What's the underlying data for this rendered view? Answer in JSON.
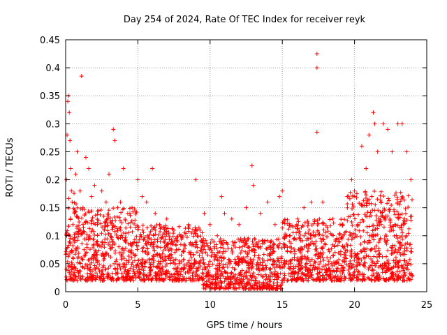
{
  "chart_data": {
    "type": "scatter",
    "title": "Day 254 of 2024, Rate Of TEC Index for receiver reyk",
    "xlabel": "GPS time / hours",
    "ylabel": "ROTI / TECUs",
    "xlim": [
      0,
      25
    ],
    "ylim": [
      0,
      0.45
    ],
    "x_ticks": [
      0,
      5,
      10,
      15,
      20,
      25
    ],
    "y_ticks": [
      0,
      0.05,
      0.1,
      0.15,
      0.2,
      0.25,
      0.3,
      0.35,
      0.4,
      0.45
    ],
    "x_tick_labels": [
      "0",
      "5",
      "10",
      "15",
      "20",
      "25"
    ],
    "y_tick_labels": [
      "0",
      "0.05",
      "0.1",
      "0.15",
      "0.2",
      "0.25",
      "0.3",
      "0.35",
      "0.4",
      "0.45"
    ],
    "grid": true,
    "marker": "+",
    "marker_color": "#ff0000",
    "series": [
      {
        "name": "ROTI",
        "points_note": "dense cloud of ~thousands of points; representative sample below",
        "x": [
          0.05,
          0.1,
          0.15,
          0.2,
          0.25,
          0.3,
          0.35,
          0.4,
          0.45,
          0.5,
          0.6,
          0.7,
          0.8,
          1.0,
          1.1,
          1.2,
          1.4,
          1.6,
          1.8,
          2.0,
          2.2,
          2.5,
          2.8,
          3.0,
          3.3,
          3.4,
          3.6,
          3.8,
          4.0,
          4.3,
          4.6,
          5.0,
          5.3,
          5.6,
          6.0,
          6.2,
          6.5,
          7.0,
          7.5,
          8.0,
          8.5,
          9.0,
          9.3,
          9.6,
          10.0,
          10.5,
          10.8,
          11.0,
          11.5,
          12.0,
          12.5,
          12.9,
          13.0,
          13.5,
          14.0,
          14.5,
          14.8,
          15.0,
          15.5,
          16.0,
          16.5,
          17.0,
          17.4,
          17.4,
          17.4,
          17.8,
          18.5,
          19.0,
          19.5,
          19.8,
          20.0,
          20.5,
          20.8,
          21.0,
          21.3,
          21.4,
          21.6,
          22.0,
          22.3,
          22.6,
          23.0,
          23.3,
          23.6,
          23.9
        ],
        "y": [
          0.2,
          0.28,
          0.34,
          0.35,
          0.32,
          0.27,
          0.22,
          0.18,
          0.16,
          0.12,
          0.14,
          0.21,
          0.25,
          0.18,
          0.385,
          0.15,
          0.24,
          0.22,
          0.17,
          0.19,
          0.12,
          0.18,
          0.16,
          0.21,
          0.29,
          0.27,
          0.15,
          0.16,
          0.22,
          0.14,
          0.15,
          0.2,
          0.17,
          0.16,
          0.22,
          0.14,
          0.12,
          0.13,
          0.11,
          0.1,
          0.12,
          0.2,
          0.11,
          0.14,
          0.12,
          0.1,
          0.17,
          0.14,
          0.13,
          0.12,
          0.15,
          0.225,
          0.19,
          0.14,
          0.16,
          0.12,
          0.17,
          0.18,
          0.1,
          0.12,
          0.15,
          0.16,
          0.425,
          0.4,
          0.285,
          0.16,
          0.13,
          0.12,
          0.17,
          0.2,
          0.18,
          0.26,
          0.22,
          0.28,
          0.32,
          0.3,
          0.25,
          0.3,
          0.29,
          0.25,
          0.3,
          0.3,
          0.25,
          0.2
        ],
        "baseline_note": "bulk of values between 0.01 and 0.1 across all hours"
      }
    ]
  }
}
